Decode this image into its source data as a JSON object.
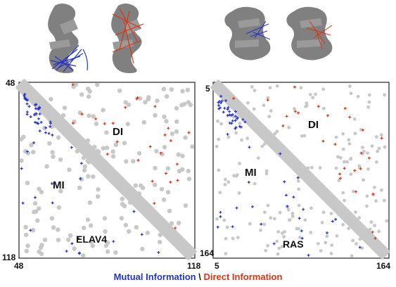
{
  "colors": {
    "mi": "#2233cc",
    "di": "#dd3311",
    "contact": "#c8c8c8",
    "frame": "#222222",
    "protein": "#6a6a6a"
  },
  "panels": [
    {
      "id": "elav4",
      "name": "ELAV4",
      "tick_start": "48",
      "tick_end": "118",
      "mi_label": "MI",
      "di_label": "DI",
      "range": [
        48,
        118
      ]
    },
    {
      "id": "ras",
      "name": "RAS",
      "tick_start": "5",
      "tick_end": "164",
      "mi_label": "MI",
      "di_label": "DI",
      "range": [
        5,
        164
      ]
    }
  ],
  "caption": {
    "mi": "Mutual Information",
    "sep": " \\ ",
    "di": "Direct Information"
  }
}
